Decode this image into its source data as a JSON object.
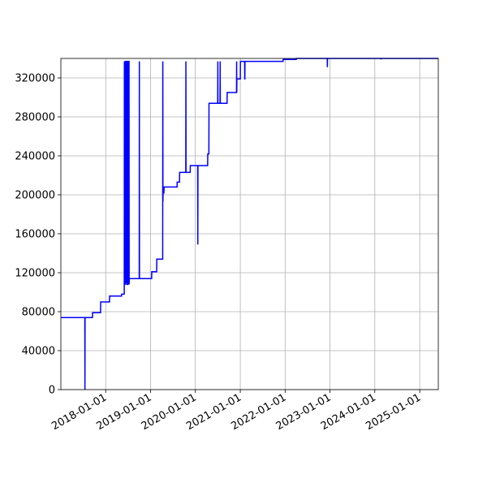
{
  "chart_data": {
    "type": "line",
    "title": "",
    "xlabel": "",
    "ylabel": "",
    "grid": true,
    "x_is_date": true,
    "xlim": [
      "2017-01-01",
      "2025-06-01"
    ],
    "ylim": [
      0,
      340000
    ],
    "x_ticks": [
      "2018-01-01",
      "2019-01-01",
      "2020-01-01",
      "2021-01-01",
      "2022-01-01",
      "2023-01-01",
      "2024-01-01",
      "2025-01-01"
    ],
    "y_ticks": [
      0,
      40000,
      80000,
      120000,
      160000,
      200000,
      240000,
      280000,
      320000
    ],
    "series": [
      {
        "color": "#0000ff",
        "x": [
          "2017-01-01",
          "2017-07-15",
          "2017-07-16",
          "2017-07-17",
          "2017-09-15",
          "2017-09-16",
          "2017-11-20",
          "2017-11-21",
          "2018-02-01",
          "2018-02-02",
          "2018-05-10",
          "2018-05-11",
          "2018-06-01",
          "2018-06-02",
          "2018-06-03",
          "2018-06-08",
          "2018-06-09",
          "2018-06-12",
          "2018-06-13",
          "2018-06-16",
          "2018-06-17",
          "2018-06-20",
          "2018-06-21",
          "2018-06-24",
          "2018-06-25",
          "2018-06-28",
          "2018-06-29",
          "2018-07-02",
          "2018-07-03",
          "2018-07-10",
          "2018-07-11",
          "2018-07-12",
          "2018-07-13",
          "2018-08-15",
          "2018-10-01",
          "2018-10-02",
          "2018-10-03",
          "2019-01-10",
          "2019-01-11",
          "2019-02-20",
          "2019-02-21",
          "2019-04-10",
          "2019-04-11",
          "2019-04-12",
          "2019-04-13",
          "2019-04-20",
          "2019-04-21",
          "2019-05-10",
          "2019-05-11",
          "2019-08-05",
          "2019-08-06",
          "2019-08-25",
          "2019-08-26",
          "2019-10-15",
          "2019-10-16",
          "2019-10-17",
          "2019-10-18",
          "2019-11-20",
          "2019-11-21",
          "2020-01-20",
          "2020-01-21",
          "2020-01-22",
          "2020-01-23",
          "2020-04-10",
          "2020-04-11",
          "2020-04-20",
          "2020-04-21",
          "2020-07-01",
          "2020-07-02",
          "2020-07-03",
          "2020-07-04",
          "2020-07-20",
          "2020-07-21",
          "2020-07-22",
          "2020-07-23",
          "2020-09-15",
          "2020-09-16",
          "2020-12-01",
          "2020-12-02",
          "2020-12-03",
          "2020-12-04",
          "2021-01-01",
          "2021-01-02",
          "2021-02-05",
          "2021-02-06",
          "2021-02-07",
          "2021-02-08",
          "2021-04-01",
          "2021-04-02",
          "2021-12-15",
          "2021-12-16",
          "2022-04-01",
          "2022-04-02",
          "2022-12-10",
          "2022-12-11",
          "2022-12-12",
          "2022-12-13",
          "2024-02-20",
          "2024-02-21",
          "2024-02-22",
          "2025-06-01"
        ],
        "y": [
          74000,
          74000,
          0,
          74000,
          74000,
          79000,
          79000,
          90000,
          90000,
          96000,
          96000,
          98000,
          98000,
          337000,
          108000,
          108000,
          337000,
          337000,
          110000,
          110000,
          337000,
          337000,
          108000,
          108000,
          337000,
          337000,
          108000,
          108000,
          337000,
          337000,
          108000,
          114000,
          114000,
          114000,
          114000,
          337000,
          114000,
          114000,
          121000,
          121000,
          134000,
          134000,
          337000,
          193000,
          202000,
          202000,
          208000,
          208000,
          208000,
          208000,
          213000,
          213000,
          223000,
          223000,
          337000,
          223000,
          223000,
          223000,
          230000,
          230000,
          149000,
          230000,
          230000,
          230000,
          242000,
          242000,
          294000,
          294000,
          337000,
          294000,
          294000,
          294000,
          337000,
          294000,
          294000,
          294000,
          305000,
          305000,
          337000,
          305000,
          319000,
          319000,
          337000,
          337000,
          319000,
          319000,
          337000,
          337000,
          337000,
          337000,
          339000,
          339000,
          340000,
          340000,
          331000,
          340000,
          340000,
          340000,
          339000,
          340000,
          340000
        ]
      }
    ]
  }
}
